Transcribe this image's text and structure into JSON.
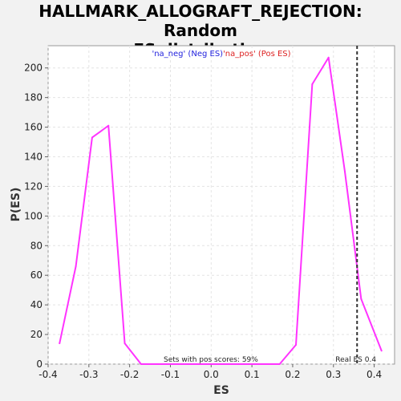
{
  "chart_data": {
    "type": "line",
    "title_line1": "HALLMARK_ALLOGRAFT_REJECTION: Random",
    "title_line2": "ES distribution",
    "xlabel": "ES",
    "ylabel": "P(ES)",
    "xlim": [
      -0.4,
      0.45
    ],
    "ylim": [
      0,
      215
    ],
    "x_ticks": [
      "-0.4",
      "-0.3",
      "-0.2",
      "-0.1",
      "0.0",
      "0.1",
      "0.2",
      "0.3",
      "0.4"
    ],
    "x_tick_values": [
      -0.4,
      -0.3,
      -0.2,
      -0.1,
      0.0,
      0.1,
      0.2,
      0.3,
      0.4
    ],
    "y_ticks": [
      "0",
      "20",
      "40",
      "60",
      "80",
      "100",
      "120",
      "140",
      "160",
      "180",
      "200"
    ],
    "y_tick_values": [
      0,
      20,
      40,
      60,
      80,
      100,
      120,
      140,
      160,
      180,
      200
    ],
    "grid": true,
    "legend": {
      "neg_label": "'na_neg' (Neg ES)",
      "pos_label": "'na_pos' (Pos ES)",
      "neg_color": "#2222dd",
      "pos_color": "#dd2222",
      "placement": "top-center"
    },
    "series": [
      {
        "color": "#ff33ff",
        "x": [
          -0.372,
          -0.332,
          -0.292,
          -0.252,
          -0.212,
          -0.172,
          -0.132,
          -0.092,
          -0.052,
          -0.012,
          0.028,
          0.068,
          0.108,
          0.148,
          0.168,
          0.208,
          0.248,
          0.288,
          0.328,
          0.368,
          0.418
        ],
        "y": [
          14,
          66,
          153,
          161,
          14,
          0,
          0,
          0,
          0,
          0,
          0,
          0,
          0,
          0,
          0,
          13,
          189,
          207,
          130,
          44,
          9
        ]
      }
    ],
    "annotations": {
      "sets_text": "Sets with pos scores: 59%",
      "real_es_text": "Real ES 0.4",
      "real_es_value": 0.358,
      "line_color": "#333333"
    }
  }
}
